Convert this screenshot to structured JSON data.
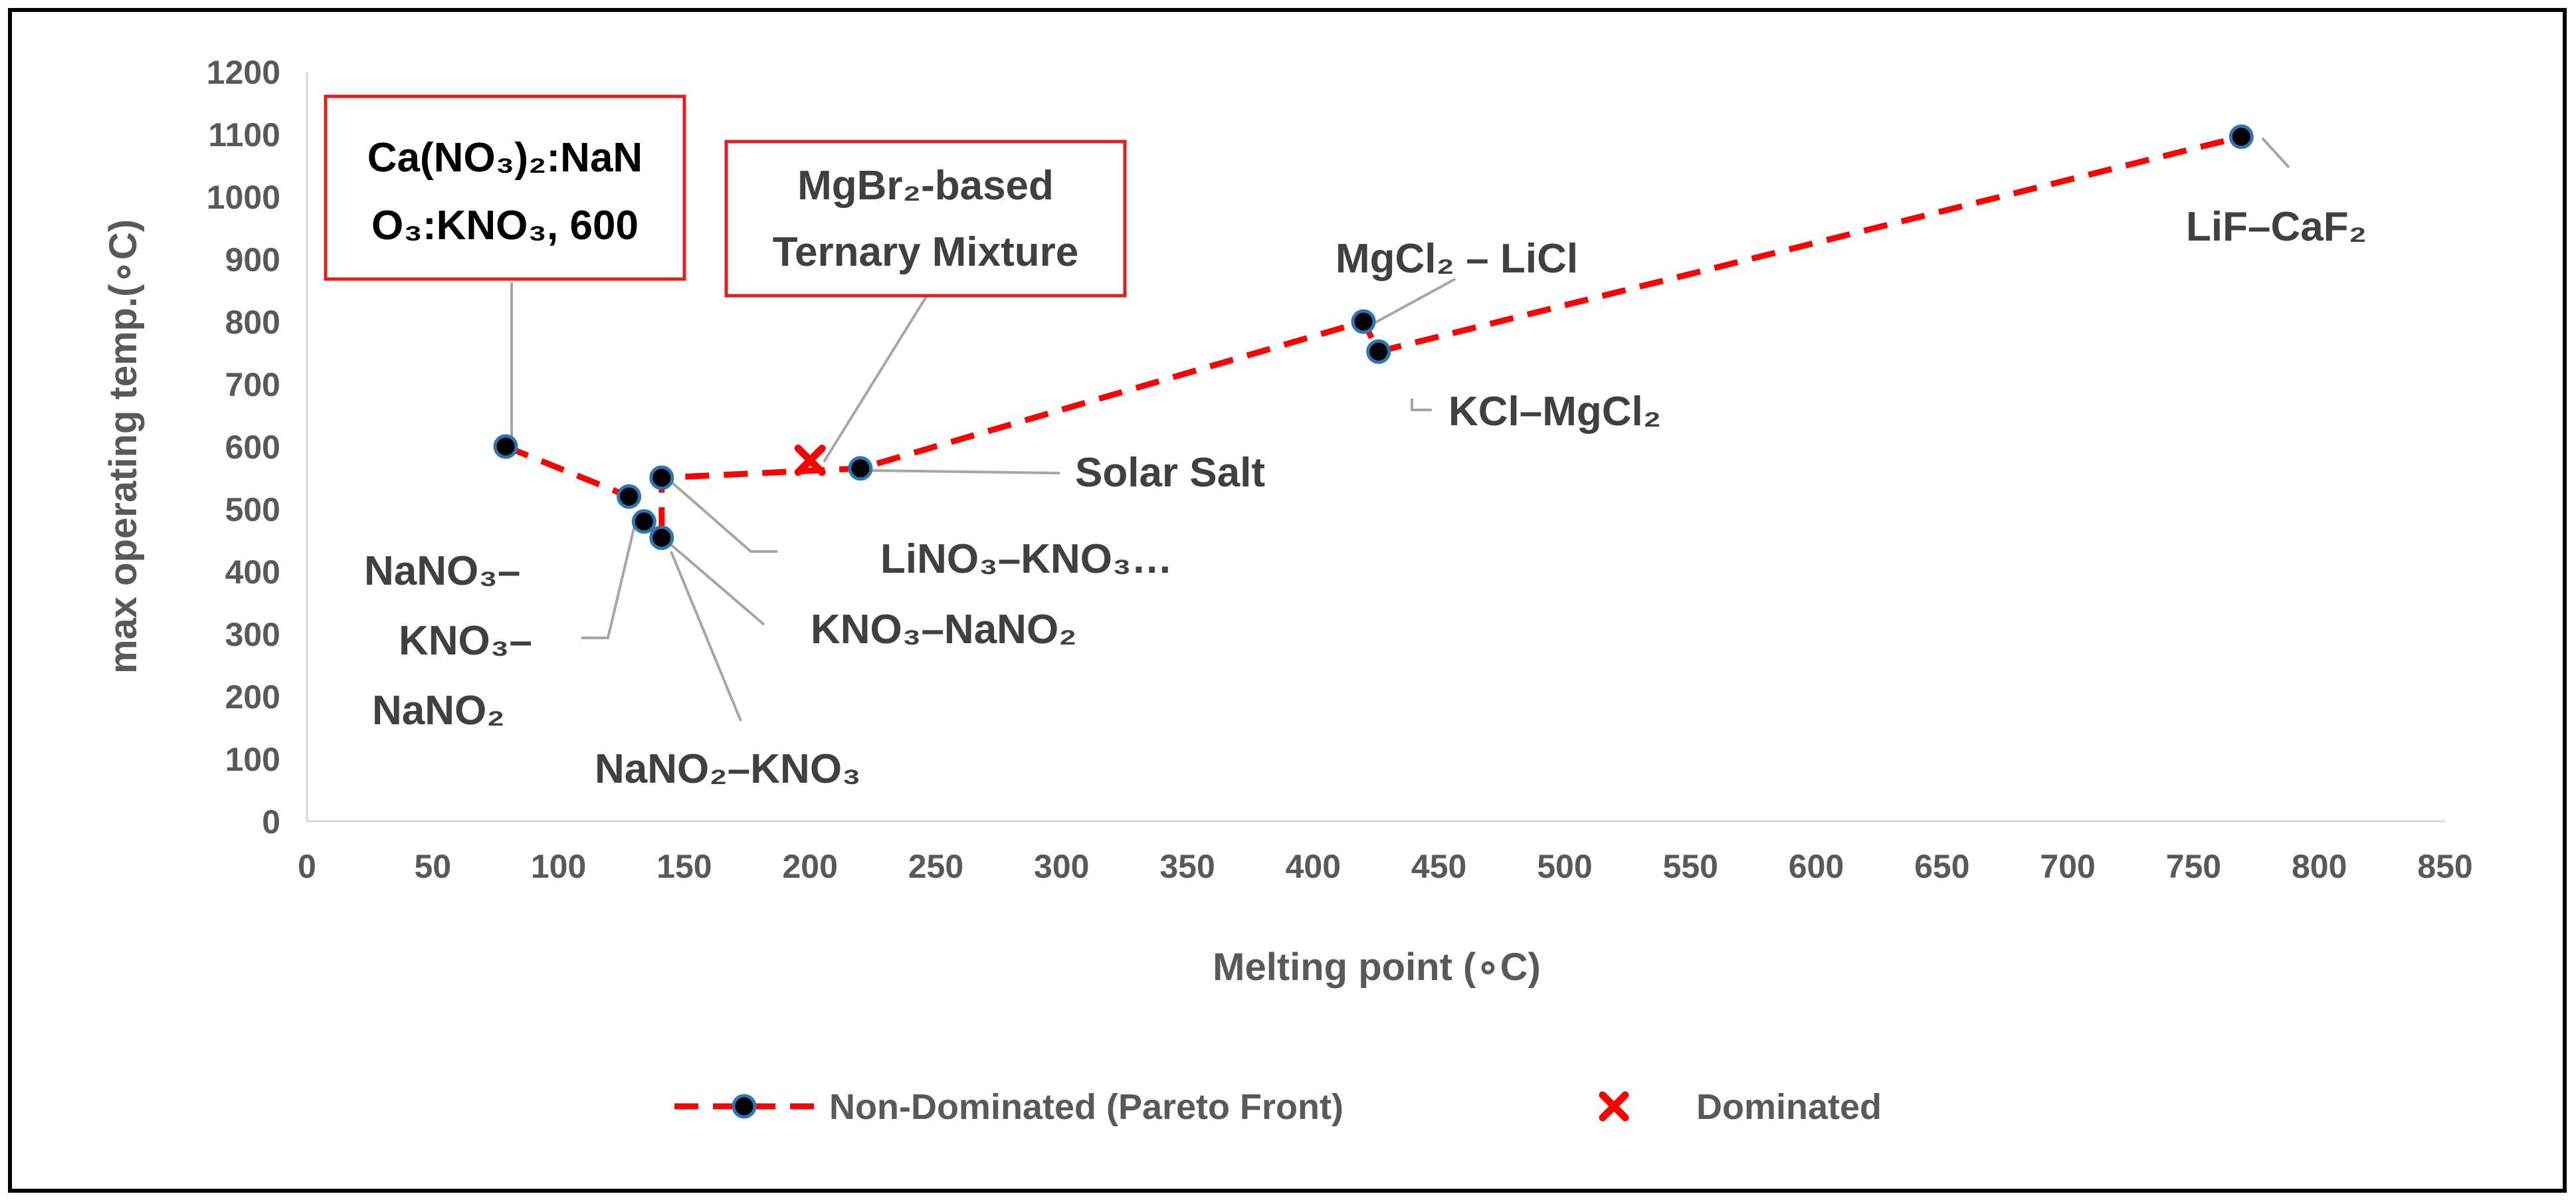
{
  "chart_data": {
    "type": "scatter",
    "xlabel": "Melting point (∘C)",
    "ylabel": "max operating temp.(∘C)",
    "xlim": [
      0,
      850
    ],
    "ylim": [
      0,
      1200
    ],
    "xticks": [
      0,
      50,
      100,
      150,
      200,
      250,
      300,
      350,
      400,
      450,
      500,
      550,
      600,
      650,
      700,
      750,
      800,
      850
    ],
    "yticks": [
      0,
      100,
      200,
      300,
      400,
      500,
      600,
      700,
      800,
      900,
      1000,
      1100,
      1200
    ],
    "grid": false,
    "legend_position": "bottom",
    "series": [
      {
        "name": "Non-Dominated (Pareto Front)",
        "style": "dashed-line-with-circle-markers",
        "line_color": "#ff0000",
        "marker_color": "#000000",
        "marker_edge": "#2e75b6",
        "points": [
          {
            "x": 79,
            "y": 600,
            "label": "Ca(NO₃)₂:NaNO₃:KNO₃, 600"
          },
          {
            "x": 128,
            "y": 520,
            "label": "NaNO₃–KNO₃–NaNO₂"
          },
          {
            "x": 134,
            "y": 480,
            "label": "NaNO₃–KNO₃–NaNO₂"
          },
          {
            "x": 141,
            "y": 454,
            "label": "KNO₃–NaNO₂"
          },
          {
            "x": 141,
            "y": 550,
            "label": "LiNO₃–KNO₃..."
          },
          {
            "x": 220,
            "y": 565,
            "label": "Solar Salt"
          },
          {
            "x": 420,
            "y": 800,
            "label": "MgCl₂ – LiCl"
          },
          {
            "x": 426,
            "y": 752,
            "label": "KCl–MgCl₂"
          },
          {
            "x": 769,
            "y": 1096,
            "label": "LiF–CaF₂"
          }
        ]
      },
      {
        "name": "Dominated",
        "style": "x-marker",
        "marker_color": "#ff0000",
        "points": [
          {
            "x": 200,
            "y": 578,
            "label": "MgBr₂-based Ternary Mixture"
          }
        ]
      }
    ]
  },
  "annotations": {
    "ca_box_line1": "Ca(NO₃)₂:NaN",
    "ca_box_line2": "O₃:KNO₃, 600",
    "mgbr_box_line1": "MgBr₂-based",
    "mgbr_box_line2": "Ternary Mixture",
    "mgcl_licl": "MgCl₂ – LiCl",
    "lif_caf": "LiF–CaF₂",
    "kcl_mgcl": "KCl–MgCl₂",
    "solar_salt": "Solar Salt",
    "lino3": "LiNO₃–KNO₃…",
    "kno3_nano2": "KNO₃–NaNO₂",
    "nano3_line1": "NaNO₃–",
    "nano3_line2": "KNO₃–",
    "nano3_line3": "NaNO₂",
    "nano2_kno3": "NaNO₂–KNO₃"
  },
  "legend": {
    "pareto": "Non-Dominated (Pareto Front)",
    "dominated": "Dominated"
  }
}
